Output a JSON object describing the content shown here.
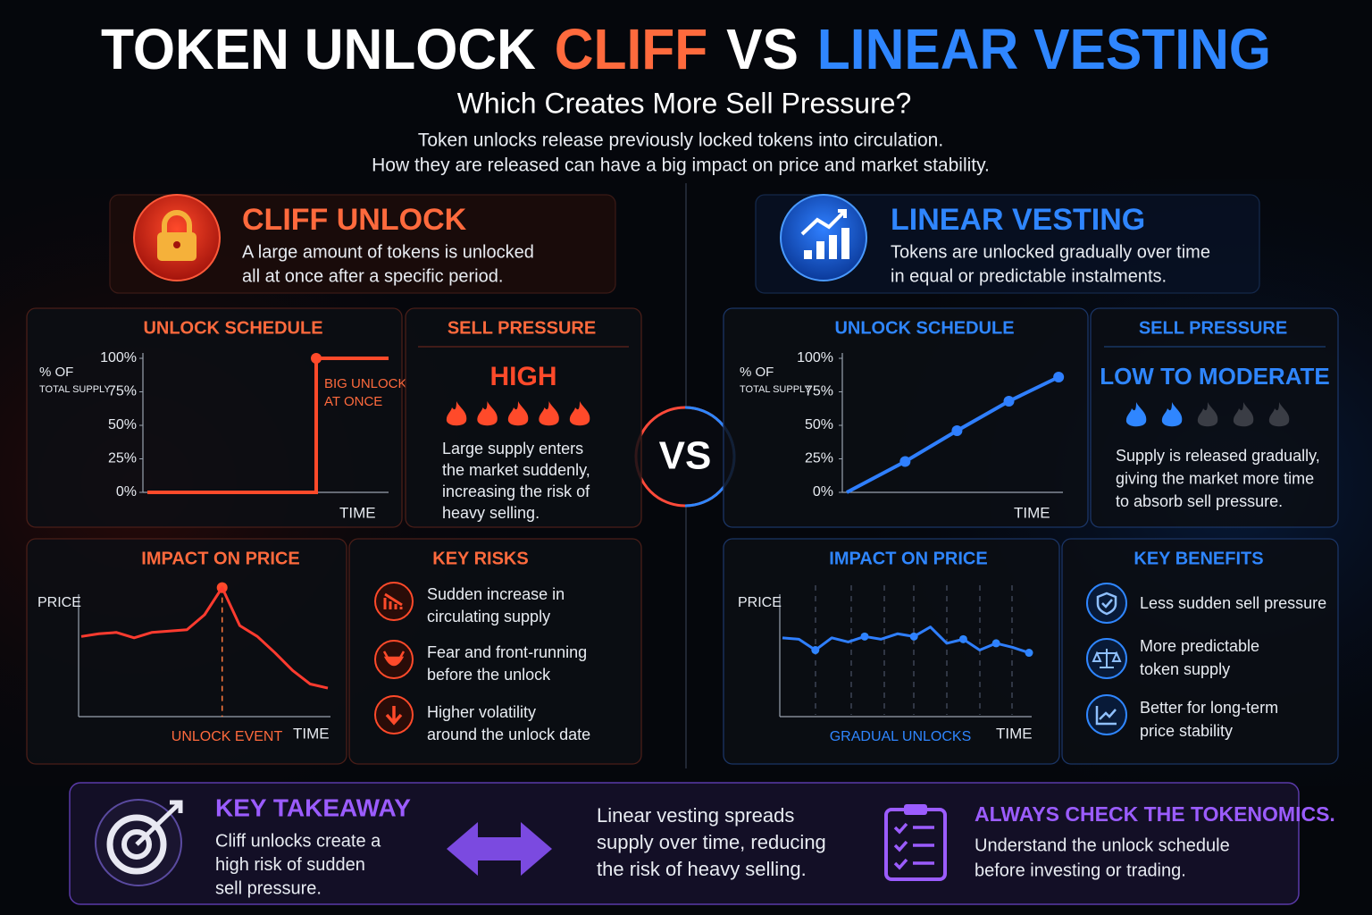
{
  "header": {
    "title": [
      "TOKEN UNLOCK",
      "CLIFF",
      "VS",
      "LINEAR VESTING"
    ],
    "subtitle": "Which Creates More Sell Pressure?",
    "intro": [
      "Token unlocks release previously locked tokens into circulation.",
      "How they are released can have a big impact on price and market stability."
    ]
  },
  "vs": "VS",
  "cliff": {
    "title": "CLIFF UNLOCK",
    "description": [
      "A large amount of tokens is unlocked",
      "all at once after a specific period."
    ],
    "schedule": {
      "title": "UNLOCK SCHEDULE",
      "ylabel": [
        "% OF",
        "TOTAL SUPPLY"
      ],
      "xlabel": "TIME",
      "annotation": [
        "BIG UNLOCK",
        "AT ONCE"
      ],
      "x": [
        0,
        70,
        70,
        100
      ],
      "values": [
        0,
        0,
        100,
        100
      ],
      "xlim": [
        0,
        100
      ],
      "ylim": [
        0,
        100
      ],
      "yticks": [
        {
          "value": 0,
          "label": "0%"
        },
        {
          "value": 25,
          "label": "25%"
        },
        {
          "value": 50,
          "label": "50%"
        },
        {
          "value": 75,
          "label": "75%"
        },
        {
          "value": 100,
          "label": "100%"
        }
      ],
      "color": "#ff4a2a"
    },
    "sell_pressure": {
      "title": "SELL PRESSURE",
      "level": "HIGH",
      "rating": 5,
      "rating_max": 5,
      "text": [
        "Large supply enters",
        "the market suddenly,",
        "increasing the risk of",
        "heavy selling."
      ]
    },
    "price": {
      "title": "IMPACT ON PRICE",
      "ylabel": "PRICE",
      "xlabel": "TIME",
      "annotation": "UNLOCK EVENT",
      "values": [
        59,
        61,
        62,
        58,
        62,
        63,
        64,
        75,
        95,
        67,
        59,
        47,
        34,
        24,
        21
      ],
      "ylim": [
        0,
        100
      ],
      "color": "#ff3b2f"
    },
    "list": {
      "title": "KEY RISKS",
      "items": [
        [
          "Sudden increase in",
          "circulating supply"
        ],
        [
          "Fear and front-running",
          "before the unlock"
        ],
        [
          "Higher volatility",
          "around the unlock date"
        ]
      ]
    }
  },
  "linear": {
    "title": "LINEAR VESTING",
    "description": [
      "Tokens are unlocked gradually over time",
      "in equal or predictable instalments."
    ],
    "schedule": {
      "title": "UNLOCK SCHEDULE",
      "ylabel": [
        "% OF",
        "TOTAL SUPPLY"
      ],
      "xlabel": "TIME",
      "x": [
        0,
        27,
        51,
        75,
        98
      ],
      "values": [
        0,
        23,
        46,
        68,
        86
      ],
      "xlim": [
        0,
        100
      ],
      "ylim": [
        0,
        100
      ],
      "yticks": [
        {
          "value": 0,
          "label": "0%"
        },
        {
          "value": 25,
          "label": "25%"
        },
        {
          "value": 50,
          "label": "50%"
        },
        {
          "value": 75,
          "label": "75%"
        },
        {
          "value": 100,
          "label": "100%"
        }
      ],
      "color": "#2f7fff"
    },
    "sell_pressure": {
      "title": "SELL PRESSURE",
      "level": "LOW TO MODERATE",
      "rating": 2,
      "rating_max": 5,
      "text": [
        "Supply is released gradually,",
        "giving the market more time",
        "to absorb sell pressure."
      ]
    },
    "price": {
      "title": "IMPACT ON PRICE",
      "ylabel": "PRICE",
      "xlabel": "TIME",
      "annotation": "GRADUAL UNLOCKS",
      "values": [
        58,
        57,
        49,
        58,
        55,
        59,
        57,
        61,
        59,
        66,
        54,
        57,
        49,
        54,
        51,
        47
      ],
      "ylim": [
        0,
        100
      ],
      "color": "#2f7fff"
    },
    "list": {
      "title": "KEY BENEFITS",
      "items": [
        [
          "Less sudden sell pressure"
        ],
        [
          "More predictable",
          "token supply"
        ],
        [
          "Better for long-term",
          "price stability"
        ]
      ]
    }
  },
  "takeaway": {
    "title": "KEY TAKEAWAY",
    "text": [
      "Cliff unlocks create a",
      "high risk of sudden",
      "sell pressure."
    ],
    "middle": [
      "Linear vesting spreads",
      "supply over time, reducing",
      "the risk of heavy selling."
    ],
    "check_title": "ALWAYS CHECK THE TOKENOMICS.",
    "check_text": [
      "Understand the unlock schedule",
      "before investing or trading."
    ]
  }
}
